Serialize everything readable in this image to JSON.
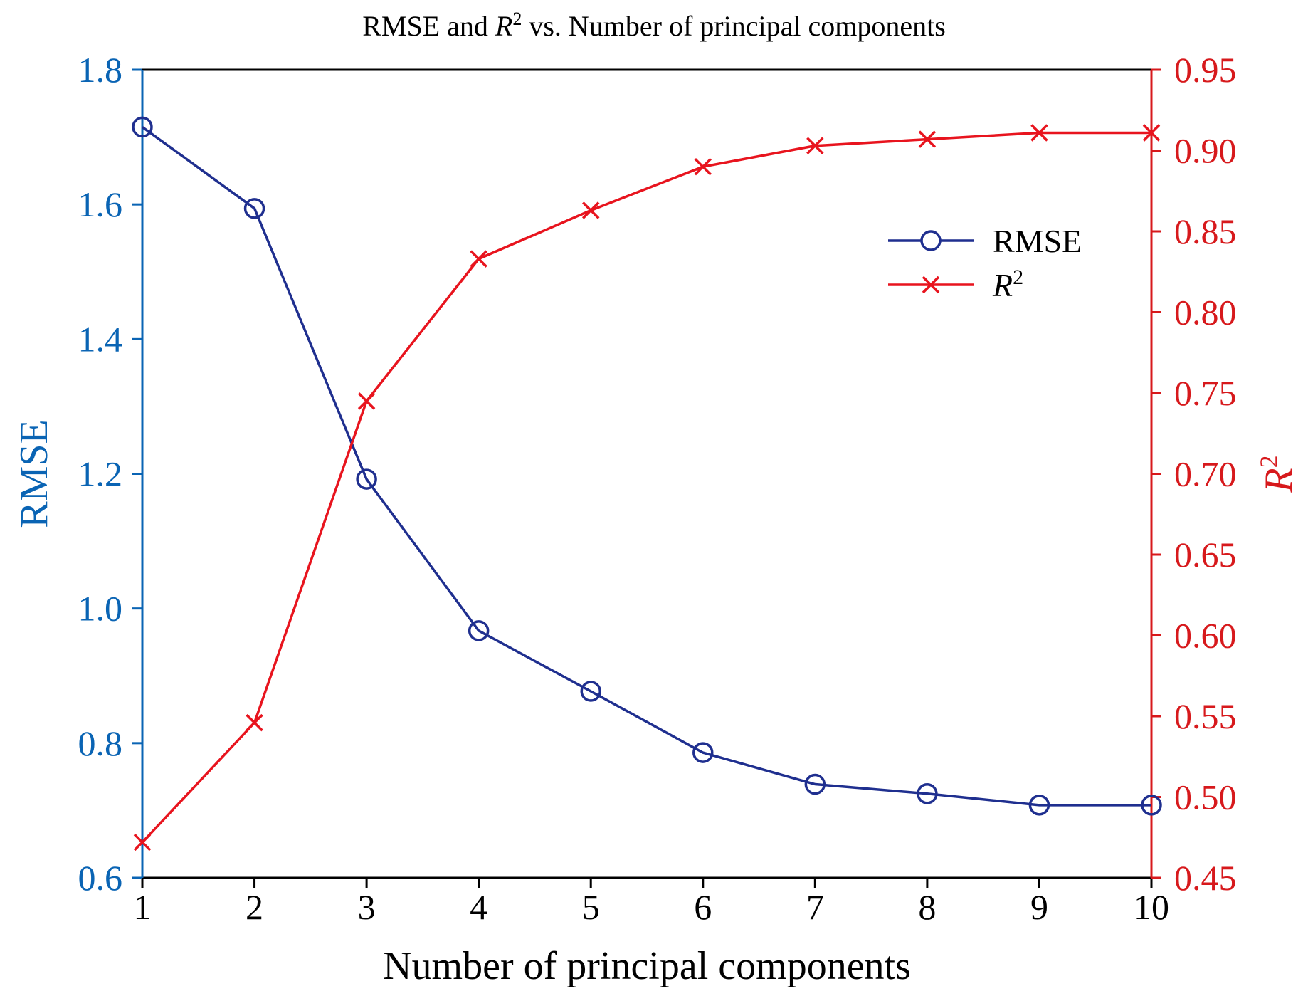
{
  "chart_data": {
    "type": "line",
    "title": "RMSE and R² vs. Number of principal components",
    "title_parts": {
      "before": "RMSE and ",
      "var": "R",
      "sup": "2",
      "after": " vs. Number of principal components"
    },
    "xlabel": "Number of principal components",
    "x": [
      1,
      2,
      3,
      4,
      5,
      6,
      7,
      8,
      9,
      10
    ],
    "x_ticks": [
      "1",
      "2",
      "3",
      "4",
      "5",
      "6",
      "7",
      "8",
      "9",
      "10"
    ],
    "xlim": [
      1,
      10
    ],
    "y_left": {
      "label": "RMSE",
      "lim": [
        0.6,
        1.8
      ],
      "ticks": [
        "0.6",
        "0.8",
        "1.0",
        "1.2",
        "1.4",
        "1.6",
        "1.8"
      ],
      "color": "#0a64b4"
    },
    "y_right": {
      "label": "R²",
      "label_var": "R",
      "label_sup": "2",
      "lim": [
        0.45,
        0.95
      ],
      "ticks": [
        "0.45",
        "0.50",
        "0.55",
        "0.60",
        "0.65",
        "0.70",
        "0.75",
        "0.80",
        "0.85",
        "0.90",
        "0.95"
      ],
      "color": "#d7191c"
    },
    "series": [
      {
        "name": "RMSE",
        "axis": "left",
        "marker": "circle",
        "color": "#1f2f8f",
        "values": [
          1.715,
          1.594,
          1.192,
          0.967,
          0.877,
          0.786,
          0.739,
          0.725,
          0.708,
          0.708
        ]
      },
      {
        "name": "R²",
        "name_var": "R",
        "name_sup": "2",
        "axis": "right",
        "marker": "x",
        "color": "#e8141e",
        "values": [
          0.472,
          0.546,
          0.745,
          0.833,
          0.863,
          0.89,
          0.903,
          0.907,
          0.911,
          0.911
        ]
      }
    ],
    "legend": {
      "position": "top-right"
    },
    "grid": false
  }
}
